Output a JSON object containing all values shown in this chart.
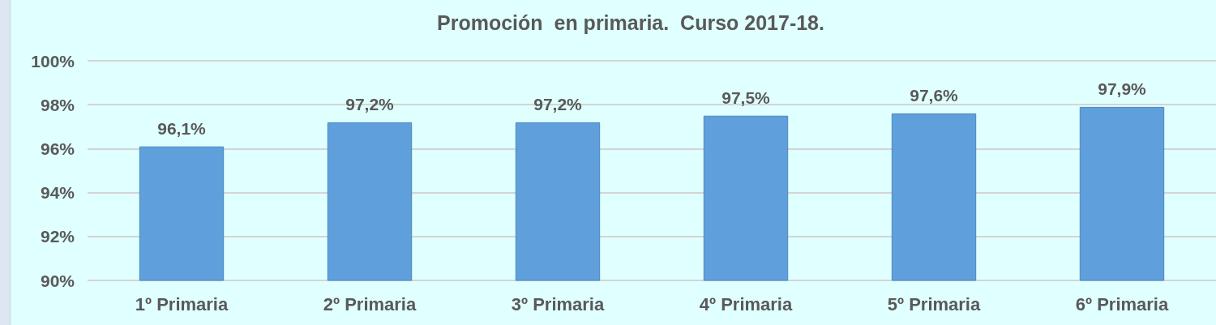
{
  "chart_data": {
    "type": "bar",
    "title": "Promoción  en primaria.  Curso 2017-18.",
    "categories": [
      "1º Primaria",
      "2º Primaria",
      "3º Primaria",
      "4º Primaria",
      "5º Primaria",
      "6º Primaria"
    ],
    "values": [
      96.1,
      97.2,
      97.2,
      97.5,
      97.6,
      97.9
    ],
    "value_labels": [
      "96,1%",
      "97,2%",
      "97,2%",
      "97,5%",
      "97,6%",
      "97,9%"
    ],
    "color": "#5fa0dc",
    "ylim": [
      90,
      100
    ],
    "yticks": [
      {
        "value": 90,
        "label": "90%"
      },
      {
        "value": 92,
        "label": "92%"
      },
      {
        "value": 94,
        "label": "94%"
      },
      {
        "value": 96,
        "label": "96%"
      },
      {
        "value": 98,
        "label": "98%"
      },
      {
        "value": 100,
        "label": "100%"
      }
    ],
    "grid": "y"
  }
}
